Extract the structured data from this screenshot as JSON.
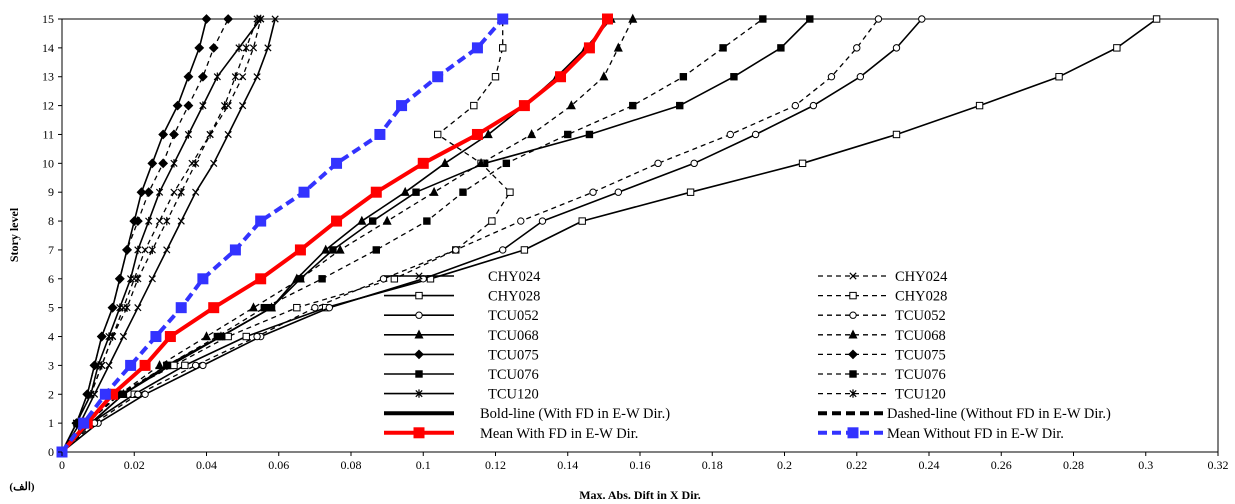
{
  "chart_data": {
    "type": "line",
    "xlabel": "Max. Abs. Dift in X Dir.",
    "ylabel": "Story level",
    "corner_label": "(الف)",
    "xlim": [
      0,
      0.32
    ],
    "ylim": [
      0,
      15
    ],
    "xticks": [
      "0",
      "0.02",
      "0.04",
      "0.06",
      "0.08",
      "0.1",
      "0.12",
      "0.14",
      "0.16",
      "0.18",
      "0.2",
      "0.22",
      "0.24",
      "0.26",
      "0.28",
      "0.3",
      "0.32"
    ],
    "yticks": [
      "0",
      "1",
      "2",
      "3",
      "4",
      "5",
      "6",
      "7",
      "8",
      "9",
      "10",
      "11",
      "12",
      "13",
      "14",
      "15"
    ],
    "y": [
      0,
      1,
      2,
      3,
      4,
      5,
      6,
      7,
      8,
      9,
      10,
      11,
      12,
      13,
      14,
      15
    ],
    "series": [
      {
        "name": "CHY024",
        "style": "solid",
        "marker": "x",
        "color": "#000000",
        "values": [
          0,
          0.005,
          0.009,
          0.013,
          0.017,
          0.021,
          0.025,
          0.029,
          0.033,
          0.037,
          0.042,
          0.046,
          0.05,
          0.054,
          0.057,
          0.059
        ]
      },
      {
        "name": "CHY028",
        "style": "solid",
        "marker": "square-open",
        "color": "#000000",
        "values": [
          0,
          0.008,
          0.02,
          0.034,
          0.051,
          0.073,
          0.102,
          0.128,
          0.144,
          0.174,
          0.205,
          0.231,
          0.254,
          0.276,
          0.292,
          0.303
        ]
      },
      {
        "name": "TCU052",
        "style": "solid",
        "marker": "circle-open",
        "color": "#000000",
        "values": [
          0,
          0.01,
          0.023,
          0.039,
          0.055,
          0.074,
          0.1,
          0.122,
          0.133,
          0.154,
          0.175,
          0.192,
          0.208,
          0.221,
          0.231,
          0.238
        ]
      },
      {
        "name": "TCU068",
        "style": "solid",
        "marker": "triangle",
        "color": "#000000",
        "values": [
          0,
          0.008,
          0.017,
          0.029,
          0.044,
          0.058,
          0.065,
          0.073,
          0.083,
          0.095,
          0.106,
          0.118,
          0.128,
          0.137,
          0.145,
          0.152
        ]
      },
      {
        "name": "TCU075",
        "style": "solid",
        "marker": "diamond",
        "color": "#000000",
        "values": [
          0,
          0.004,
          0.007,
          0.009,
          0.011,
          0.014,
          0.016,
          0.018,
          0.02,
          0.022,
          0.025,
          0.028,
          0.032,
          0.035,
          0.038,
          0.04
        ]
      },
      {
        "name": "TCU076",
        "style": "solid",
        "marker": "square",
        "color": "#000000",
        "values": [
          0,
          0.008,
          0.017,
          0.03,
          0.044,
          0.058,
          0.066,
          0.075,
          0.086,
          0.098,
          0.117,
          0.146,
          0.171,
          0.186,
          0.199,
          0.207
        ]
      },
      {
        "name": "TCU120",
        "style": "solid",
        "marker": "asterisk",
        "color": "#000000",
        "values": [
          0,
          0.004,
          0.008,
          0.01,
          0.013,
          0.016,
          0.019,
          0.021,
          0.024,
          0.027,
          0.031,
          0.035,
          0.039,
          0.043,
          0.049,
          0.055
        ]
      },
      {
        "name": "CHY024",
        "style": "dashed",
        "marker": "x",
        "color": "#000000",
        "values": [
          0,
          0.004,
          0.008,
          0.011,
          0.014,
          0.017,
          0.02,
          0.023,
          0.027,
          0.031,
          0.036,
          0.041,
          0.046,
          0.05,
          0.053,
          0.055
        ]
      },
      {
        "name": "CHY028",
        "style": "dashed",
        "marker": "square-open",
        "color": "#000000",
        "values": [
          0,
          0.006,
          0.016,
          0.031,
          0.046,
          0.065,
          0.092,
          0.109,
          0.119,
          0.124,
          0.116,
          0.104,
          0.114,
          0.12,
          0.122,
          0.122
        ]
      },
      {
        "name": "TCU052",
        "style": "dashed",
        "marker": "circle-open",
        "color": "#000000",
        "values": [
          0,
          0.009,
          0.021,
          0.037,
          0.054,
          0.07,
          0.089,
          0.109,
          0.127,
          0.147,
          0.165,
          0.185,
          0.203,
          0.213,
          0.22,
          0.226
        ]
      },
      {
        "name": "TCU068",
        "style": "dashed",
        "marker": "triangle",
        "color": "#000000",
        "values": [
          0,
          0.007,
          0.016,
          0.027,
          0.04,
          0.053,
          0.066,
          0.077,
          0.09,
          0.103,
          0.116,
          0.13,
          0.141,
          0.15,
          0.154,
          0.158
        ]
      },
      {
        "name": "TCU075",
        "style": "dashed",
        "marker": "diamond",
        "color": "#000000",
        "values": [
          0,
          0.004,
          0.007,
          0.009,
          0.011,
          0.014,
          0.016,
          0.018,
          0.021,
          0.024,
          0.028,
          0.031,
          0.035,
          0.039,
          0.042,
          0.046
        ]
      },
      {
        "name": "TCU076",
        "style": "dashed",
        "marker": "square",
        "color": "#000000",
        "values": [
          0,
          0.007,
          0.016,
          0.029,
          0.043,
          0.056,
          0.072,
          0.087,
          0.101,
          0.111,
          0.123,
          0.14,
          0.158,
          0.172,
          0.183,
          0.194
        ]
      },
      {
        "name": "TCU120",
        "style": "dashed",
        "marker": "asterisk",
        "color": "#000000",
        "values": [
          0,
          0.004,
          0.008,
          0.011,
          0.014,
          0.018,
          0.021,
          0.025,
          0.029,
          0.033,
          0.037,
          0.041,
          0.045,
          0.048,
          0.051,
          0.054
        ]
      },
      {
        "name": "Mean With FD in E-W Dir.",
        "style": "solid-bold",
        "marker": "square",
        "color": "#ff0000",
        "values": [
          0,
          0.007,
          0.014,
          0.023,
          0.03,
          0.042,
          0.055,
          0.066,
          0.076,
          0.087,
          0.1,
          0.115,
          0.128,
          0.138,
          0.146,
          0.151
        ]
      },
      {
        "name": "Mean Without FD in E-W Dir.",
        "style": "dashed-bold",
        "marker": "square",
        "color": "#3333ff",
        "values": [
          0,
          0.006,
          0.012,
          0.019,
          0.026,
          0.033,
          0.039,
          0.048,
          0.055,
          0.067,
          0.076,
          0.088,
          0.094,
          0.104,
          0.115,
          0.122
        ]
      }
    ],
    "legend": {
      "placement": "bottom-center",
      "entries": [
        {
          "name": "CHY024",
          "style": "solid",
          "marker": "x"
        },
        {
          "name": "CHY024",
          "style": "dashed",
          "marker": "x"
        },
        {
          "name": "CHY028",
          "style": "solid",
          "marker": "square-open"
        },
        {
          "name": "CHY028",
          "style": "dashed",
          "marker": "square-open"
        },
        {
          "name": "TCU052",
          "style": "solid",
          "marker": "circle-open"
        },
        {
          "name": "TCU052",
          "style": "dashed",
          "marker": "circle-open"
        },
        {
          "name": "TCU068",
          "style": "solid",
          "marker": "triangle"
        },
        {
          "name": "TCU068",
          "style": "dashed",
          "marker": "triangle"
        },
        {
          "name": "TCU075",
          "style": "solid",
          "marker": "diamond"
        },
        {
          "name": "TCU075",
          "style": "dashed",
          "marker": "diamond"
        },
        {
          "name": "TCU076",
          "style": "solid",
          "marker": "square"
        },
        {
          "name": "TCU076",
          "style": "dashed",
          "marker": "square"
        },
        {
          "name": "TCU120",
          "style": "solid",
          "marker": "asterisk"
        },
        {
          "name": "TCU120",
          "style": "dashed",
          "marker": "asterisk"
        },
        {
          "name": "Bold-line (With FD in E-W Dir.)",
          "style": "solid-bold",
          "marker": "none"
        },
        {
          "name": "Dashed-line (Without FD in E-W Dir.)",
          "style": "dashed-bold",
          "marker": "none"
        },
        {
          "name": "Mean With FD in E-W Dir.",
          "style": "solid-bold",
          "marker": "square",
          "color": "#ff0000"
        },
        {
          "name": "Mean Without FD in E-W Dir.",
          "style": "dashed-bold",
          "marker": "square",
          "color": "#3333ff"
        }
      ]
    }
  }
}
